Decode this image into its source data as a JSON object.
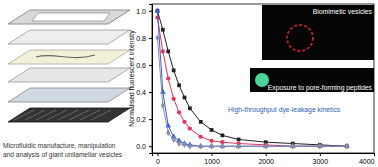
{
  "chart_data": {
    "type": "line",
    "y_label": "Normalised fluorescent intensity",
    "annotations": [
      "Biomimetic vesicles",
      "Exposure to pore-forming peptides",
      "High-throughput dye-leakage kinetics"
    ],
    "x": [
      0,
      100,
      200,
      300,
      400,
      500,
      600,
      800,
      1000,
      1200,
      1500,
      2000,
      2500,
      3000,
      3500
    ],
    "xlim": [
      -100,
      4000
    ],
    "xticks": [
      0,
      1000,
      2000,
      3000,
      4000
    ],
    "ylim": [
      -0.05,
      1.05
    ],
    "yticks": [
      {
        "value": 0,
        "label": "0.0"
      },
      {
        "value": 0.2,
        "label": "0.2"
      },
      {
        "value": 0.4,
        "label": "0.4"
      },
      {
        "value": 0.6,
        "label": "0.6"
      },
      {
        "value": 0.8,
        "label": "0.8"
      },
      {
        "value": 1,
        "label": "1.0"
      }
    ],
    "grid": false,
    "series": [
      {
        "color": "#222222",
        "marker": "square",
        "values": [
          1.0,
          0.86,
          0.7,
          0.56,
          0.45,
          0.36,
          0.28,
          0.18,
          0.12,
          0.08,
          0.05,
          0.03,
          0.02,
          0.01,
          0.0
        ]
      },
      {
        "color": "#e8335a",
        "marker": "circle",
        "values": [
          0.95,
          0.7,
          0.5,
          0.35,
          0.25,
          0.18,
          0.13,
          0.07,
          0.04,
          0.03,
          0.02,
          0.01,
          0.0,
          0.0,
          0.0
        ]
      },
      {
        "color": "#3b5bd6",
        "marker": "triangle",
        "values": [
          1.0,
          0.4,
          0.15,
          0.07,
          0.04,
          0.02,
          0.01,
          0.0,
          0.0,
          0.0,
          0.0,
          0.0,
          0.0,
          0.0,
          0.0
        ]
      },
      {
        "color": "#8a8fa8",
        "marker": "diamond",
        "values": [
          0.8,
          0.3,
          0.1,
          0.05,
          0.02,
          0.01,
          0.0,
          0.0,
          0.0,
          0.0,
          0.0,
          0.0,
          0.0,
          0.0,
          0.0
        ]
      }
    ]
  },
  "diagram": {
    "caption": [
      "Microfluidic manufacture, manipulation",
      "and analysis of giant unilamellar vesicles"
    ]
  }
}
